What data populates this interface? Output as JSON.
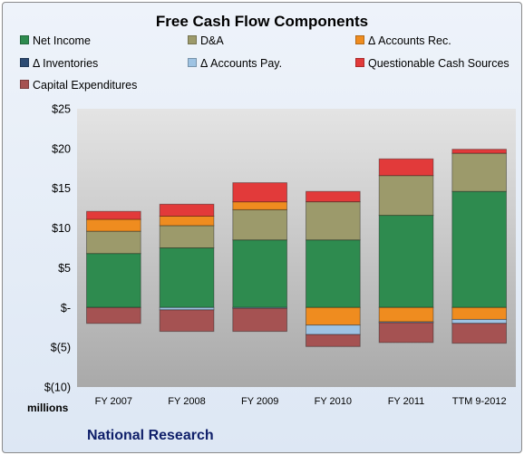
{
  "chart_data": {
    "type": "bar",
    "stacked": true,
    "title": "Free Cash Flow Components",
    "categories": [
      "FY 2007",
      "FY 2008",
      "FY 2009",
      "FY 2010",
      "FY 2011",
      "TTM 9-2012"
    ],
    "ylim": [
      -10,
      25
    ],
    "yticks": [
      25,
      20,
      15,
      10,
      5,
      0,
      -5,
      -10
    ],
    "ytick_labels": [
      "$25",
      "$20",
      "$15",
      "$10",
      "$5",
      "$-",
      "$(5)",
      "$(10)"
    ],
    "units_label": "millions",
    "grid": false,
    "legend_position": "top",
    "series": [
      {
        "name": "Net Income",
        "color": "#2e8b4f",
        "values": [
          6.8,
          7.5,
          8.5,
          8.5,
          11.6,
          14.6
        ]
      },
      {
        "name": "D&A",
        "color": "#9c9a6b",
        "values": [
          2.8,
          2.8,
          3.8,
          4.8,
          5.0,
          4.8
        ]
      },
      {
        "name": "Δ Accounts Rec.",
        "color": "#ef8c1f",
        "values": [
          1.5,
          1.2,
          1.0,
          -2.2,
          -1.8,
          -1.5
        ]
      },
      {
        "name": "Δ Inventories",
        "color": "#2d4b73",
        "values": [
          0,
          0,
          0,
          0,
          0,
          0
        ]
      },
      {
        "name": "Δ Accounts Pay.",
        "color": "#9ec3e3",
        "values": [
          0,
          -0.3,
          -0.1,
          -1.2,
          -0.1,
          -0.5
        ]
      },
      {
        "name": "Questionable Cash Sources",
        "color": "#e23a3a",
        "values": [
          1.0,
          1.5,
          2.4,
          1.3,
          2.1,
          0.5
        ]
      },
      {
        "name": "Capital Expenditures",
        "color": "#a55252",
        "values": [
          -2.0,
          -2.7,
          -2.9,
          -1.5,
          -2.5,
          -2.5
        ]
      }
    ]
  },
  "footer": {
    "company": "National Research"
  }
}
